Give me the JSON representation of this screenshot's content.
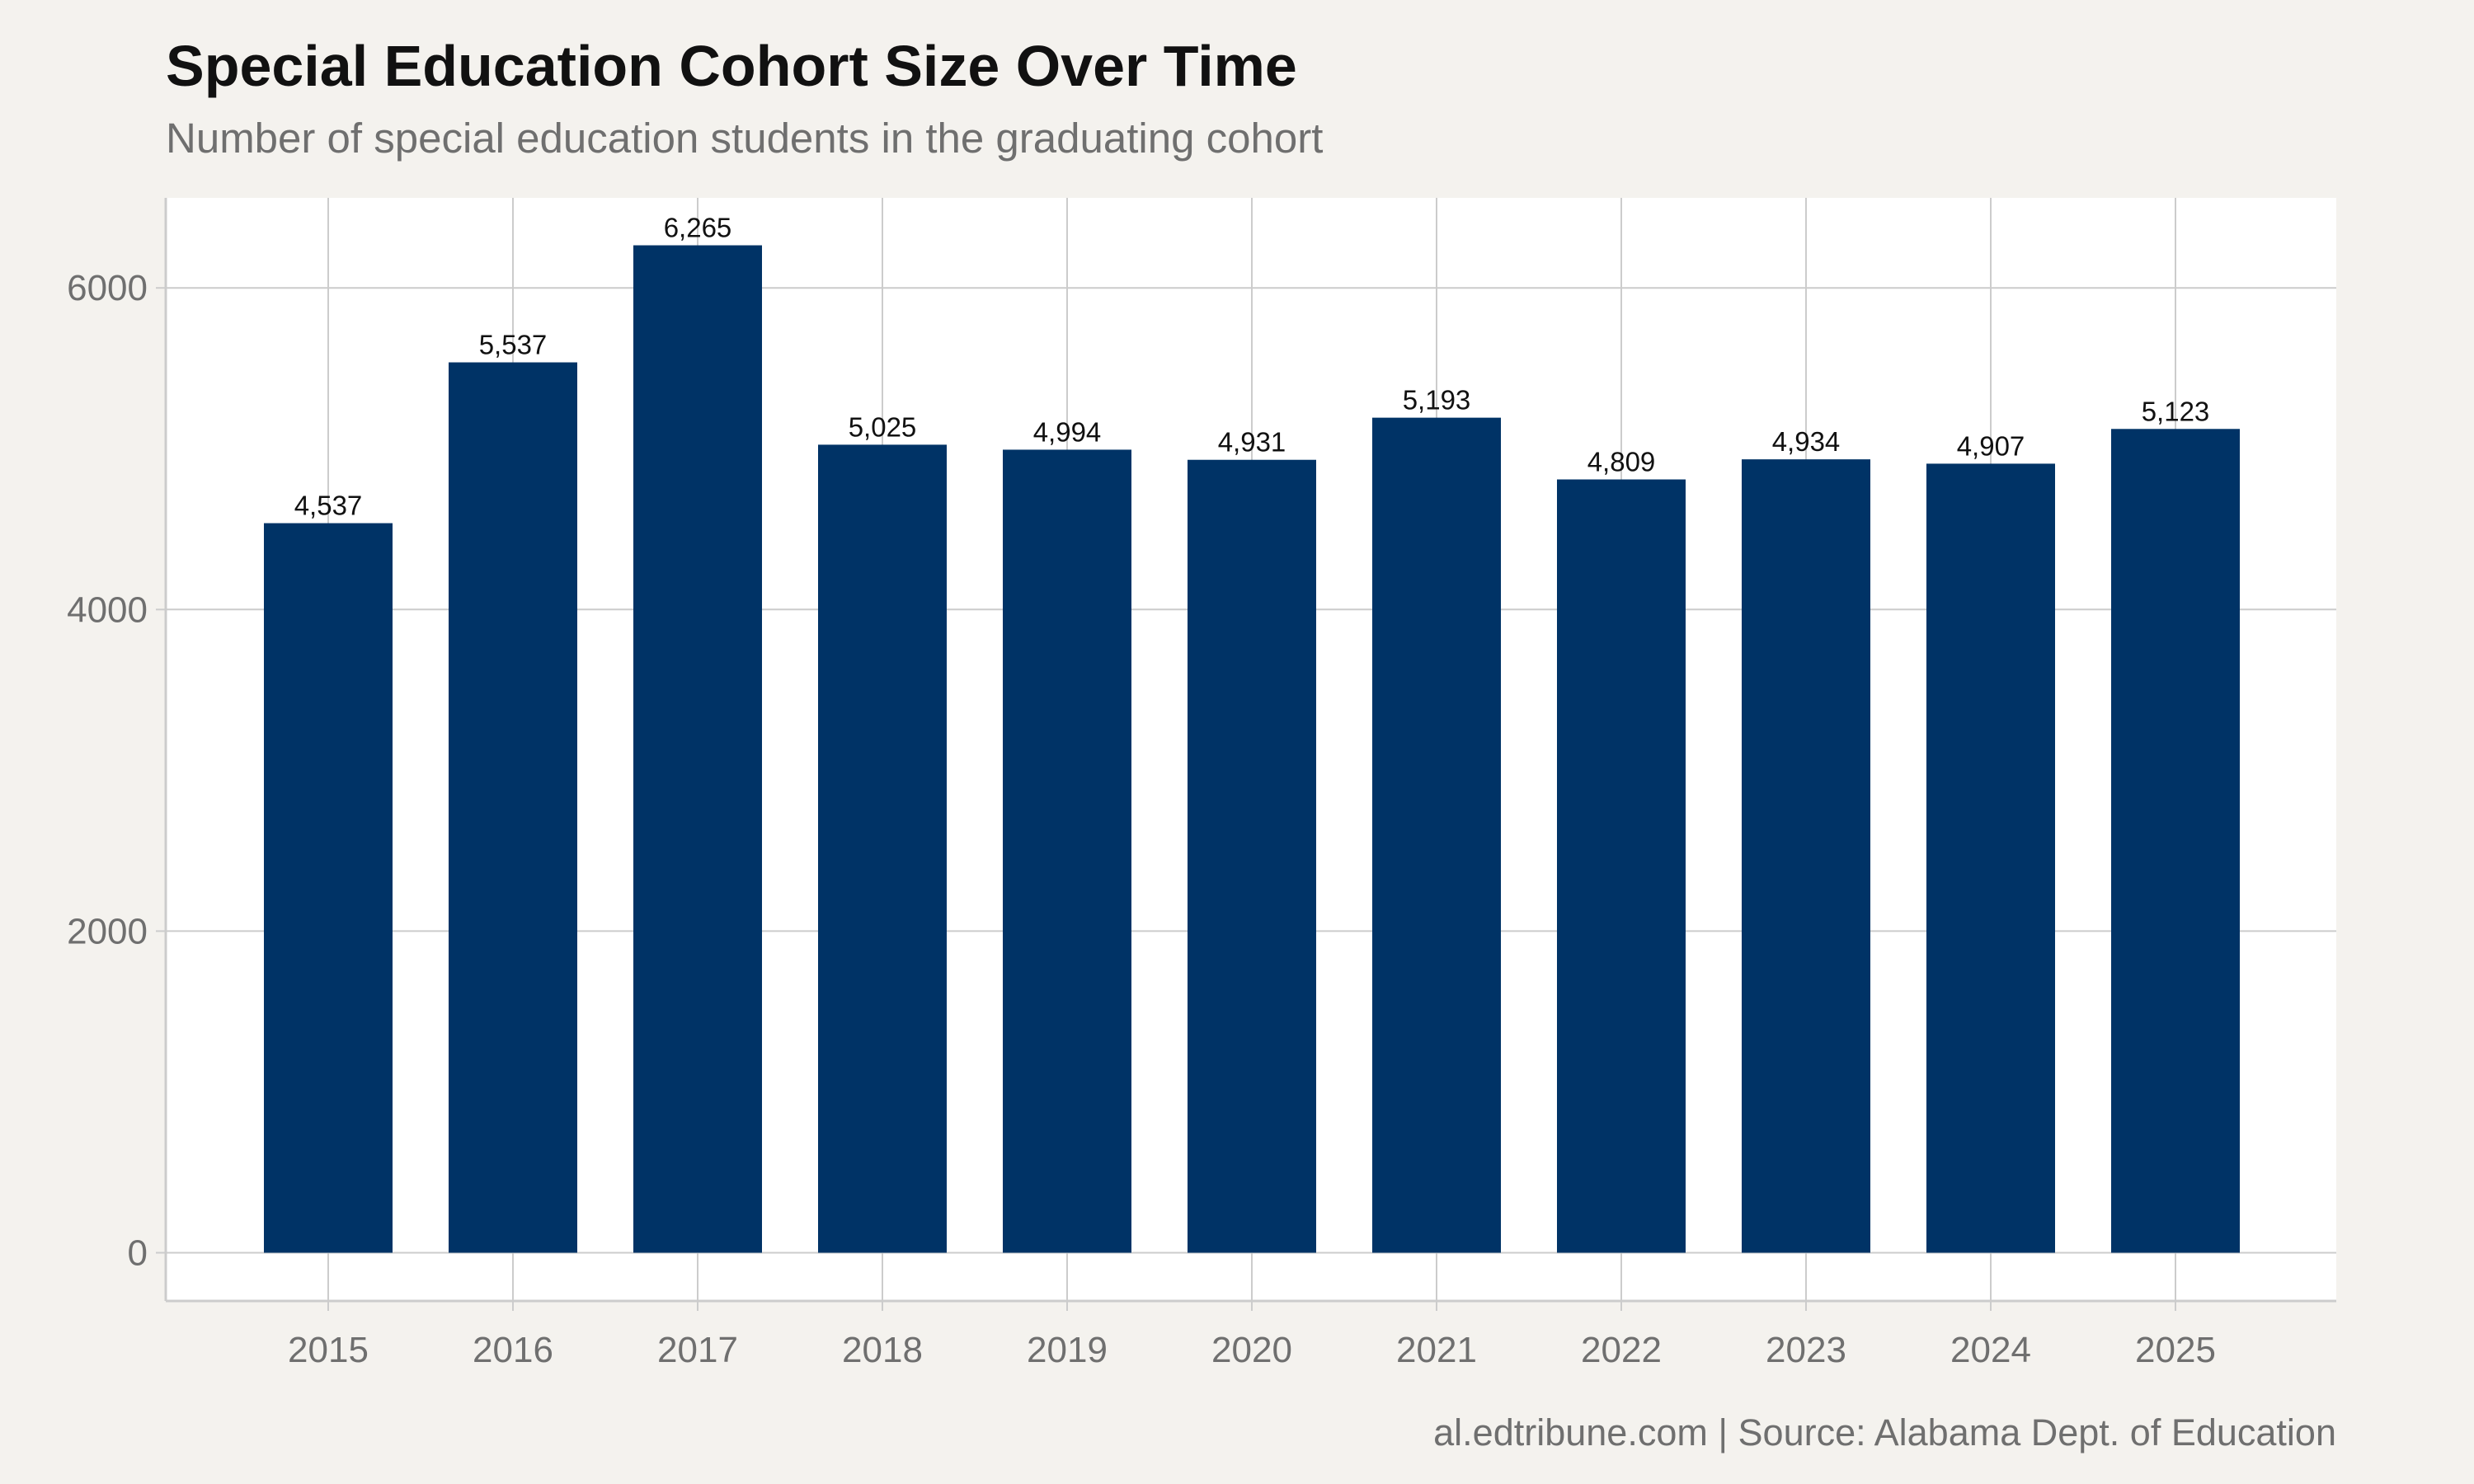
{
  "chart_data": {
    "type": "bar",
    "title": "Special Education Cohort Size Over Time",
    "subtitle": "Number of special education students in the graduating cohort",
    "caption": "al.edtribune.com | Source: Alabama Dept. of Education",
    "xlabel": "",
    "ylabel": "",
    "categories": [
      "2015",
      "2016",
      "2017",
      "2018",
      "2019",
      "2020",
      "2021",
      "2022",
      "2023",
      "2024",
      "2025"
    ],
    "values": [
      4537,
      5537,
      6265,
      5025,
      4994,
      4931,
      5193,
      4809,
      4934,
      4907,
      5123
    ],
    "value_labels": [
      "4,537",
      "5,537",
      "6,265",
      "5,025",
      "4,994",
      "4,931",
      "5,193",
      "4,809",
      "4,934",
      "4,907",
      "5,123"
    ],
    "yticks": [
      0,
      2000,
      4000,
      6000
    ],
    "ylim": [
      -300,
      6560
    ],
    "grid": true,
    "legend": "none",
    "colors": {
      "bar": "#003366",
      "plot_background": "#ffffff",
      "page_background": "#f4f2ee",
      "grid": "#cccccc",
      "axis_text": "#6f6f6f"
    }
  }
}
